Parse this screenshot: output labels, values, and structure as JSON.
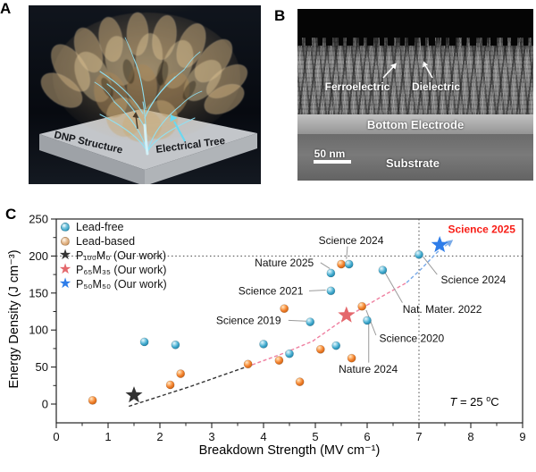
{
  "figure": {
    "panel_a": {
      "label": "A",
      "floor_left": "DNP Structure",
      "floor_right": "Electrical Tree"
    },
    "panel_b": {
      "label": "B",
      "annot_left": "Ferroelectric",
      "annot_right": "Dielectric",
      "electrode": "Bottom Electrode",
      "scalebar": "50 nm",
      "substrate": "Substrate"
    },
    "panel_c": {
      "label": "C"
    }
  },
  "chart_data": {
    "type": "scatter",
    "xlabel": "Breakdown Strength (MV cm⁻¹)",
    "ylabel": "Energy Density (J cm⁻³)",
    "xlim": [
      0,
      9
    ],
    "ylim": [
      -26,
      250
    ],
    "x_ticks": [
      0,
      1,
      2,
      3,
      4,
      5,
      6,
      7,
      8,
      9
    ],
    "y_ticks": [
      0,
      50,
      100,
      150,
      200,
      250
    ],
    "grid": false,
    "legend_position": "upper-left",
    "ref_lines": {
      "horizontal_y": 200,
      "vertical_x": 7
    },
    "temperature_note": {
      "var": "T",
      "eq": " = 25 ",
      "deg": "o",
      "unit": "C"
    },
    "series": [
      {
        "name": "Lead-free",
        "marker": "circle",
        "color": "#3fa9cd",
        "gradient": "gradCyan",
        "points": [
          [
            1.7,
            84
          ],
          [
            2.3,
            80
          ],
          [
            4.0,
            81
          ],
          [
            4.5,
            68
          ],
          [
            4.9,
            111
          ],
          [
            5.3,
            153
          ],
          [
            5.3,
            177
          ],
          [
            5.4,
            79
          ],
          [
            5.65,
            189
          ],
          [
            6.0,
            113
          ],
          [
            6.3,
            181
          ],
          [
            7.0,
            202
          ]
        ]
      },
      {
        "name": "Lead-based",
        "marker": "circle",
        "color": "#f07c28",
        "gradient": "gradOrange",
        "points": [
          [
            0.7,
            5
          ],
          [
            2.2,
            26
          ],
          [
            2.4,
            41
          ],
          [
            3.7,
            54
          ],
          [
            4.3,
            59
          ],
          [
            4.4,
            129
          ],
          [
            4.7,
            30
          ],
          [
            5.1,
            74
          ],
          [
            5.5,
            189
          ],
          [
            5.7,
            62
          ],
          [
            5.9,
            132
          ]
        ]
      },
      {
        "name": "P₁₀₀M₀ (Our work)",
        "marker": "star",
        "color": "#333333",
        "points": [
          [
            1.5,
            12
          ]
        ]
      },
      {
        "name": "P₆₅M₃₅ (Our work)",
        "marker": "star",
        "color": "#e4686c",
        "points": [
          [
            5.6,
            120
          ]
        ]
      },
      {
        "name": "P₅₀M₅₀ (Our work)",
        "marker": "star",
        "color": "#2e7de9",
        "points": [
          [
            7.4,
            215
          ]
        ]
      }
    ],
    "trend_curves": [
      {
        "color": "#333333",
        "points": [
          [
            1.4,
            -3
          ],
          [
            2.6,
            24
          ],
          [
            3.78,
            53
          ]
        ],
        "arrow": false
      },
      {
        "color": "#ef7fa0",
        "points": [
          [
            3.78,
            53
          ],
          [
            4.4,
            69
          ],
          [
            4.95,
            85
          ],
          [
            5.64,
            119
          ],
          [
            6.3,
            146
          ],
          [
            6.76,
            164
          ]
        ],
        "arrow": false
      },
      {
        "color": "#79aae8",
        "points": [
          [
            6.76,
            164
          ],
          [
            7.05,
            183
          ],
          [
            7.35,
            205
          ],
          [
            7.55,
            216
          ]
        ],
        "arrow": true
      }
    ],
    "annotations": [
      {
        "text": "Science 2024",
        "x": 5.69,
        "y": 221,
        "color": "#111111",
        "bold": false,
        "line": [
          5.62,
          213,
          5.6,
          196
        ]
      },
      {
        "text": "Nature 2025",
        "x": 4.4,
        "y": 191,
        "color": "#111111",
        "bold": false,
        "line": [
          5.1,
          191,
          5.28,
          183
        ]
      },
      {
        "text": "Science 2021",
        "x": 4.14,
        "y": 153,
        "color": "#111111",
        "bold": false,
        "line": [
          4.88,
          153,
          5.2,
          154
        ]
      },
      {
        "text": "Science 2019",
        "x": 3.71,
        "y": 113,
        "color": "#111111",
        "bold": false,
        "line": [
          4.48,
          113,
          4.82,
          112
        ]
      },
      {
        "text": "Science 2020",
        "x": 6.86,
        "y": 89,
        "color": "#111111",
        "bold": false,
        "line": [
          5.98,
          127,
          6.17,
          93
        ]
      },
      {
        "text": "Nature 2024",
        "x": 6.02,
        "y": 47,
        "color": "#111111",
        "bold": false,
        "line": [
          6.03,
          108,
          6.03,
          56
        ]
      },
      {
        "text": "Nat. Mater. 2022",
        "x": 7.45,
        "y": 128,
        "color": "#111111",
        "bold": false,
        "line": [
          6.35,
          177,
          6.68,
          137
        ]
      },
      {
        "text": "Science 2024",
        "x": 8.05,
        "y": 168,
        "color": "#111111",
        "bold": false,
        "line": [
          7.08,
          199,
          7.35,
          175
        ]
      },
      {
        "text": "Science 2025",
        "x": 8.21,
        "y": 236,
        "color": "#f81d16",
        "bold": true
      }
    ]
  }
}
